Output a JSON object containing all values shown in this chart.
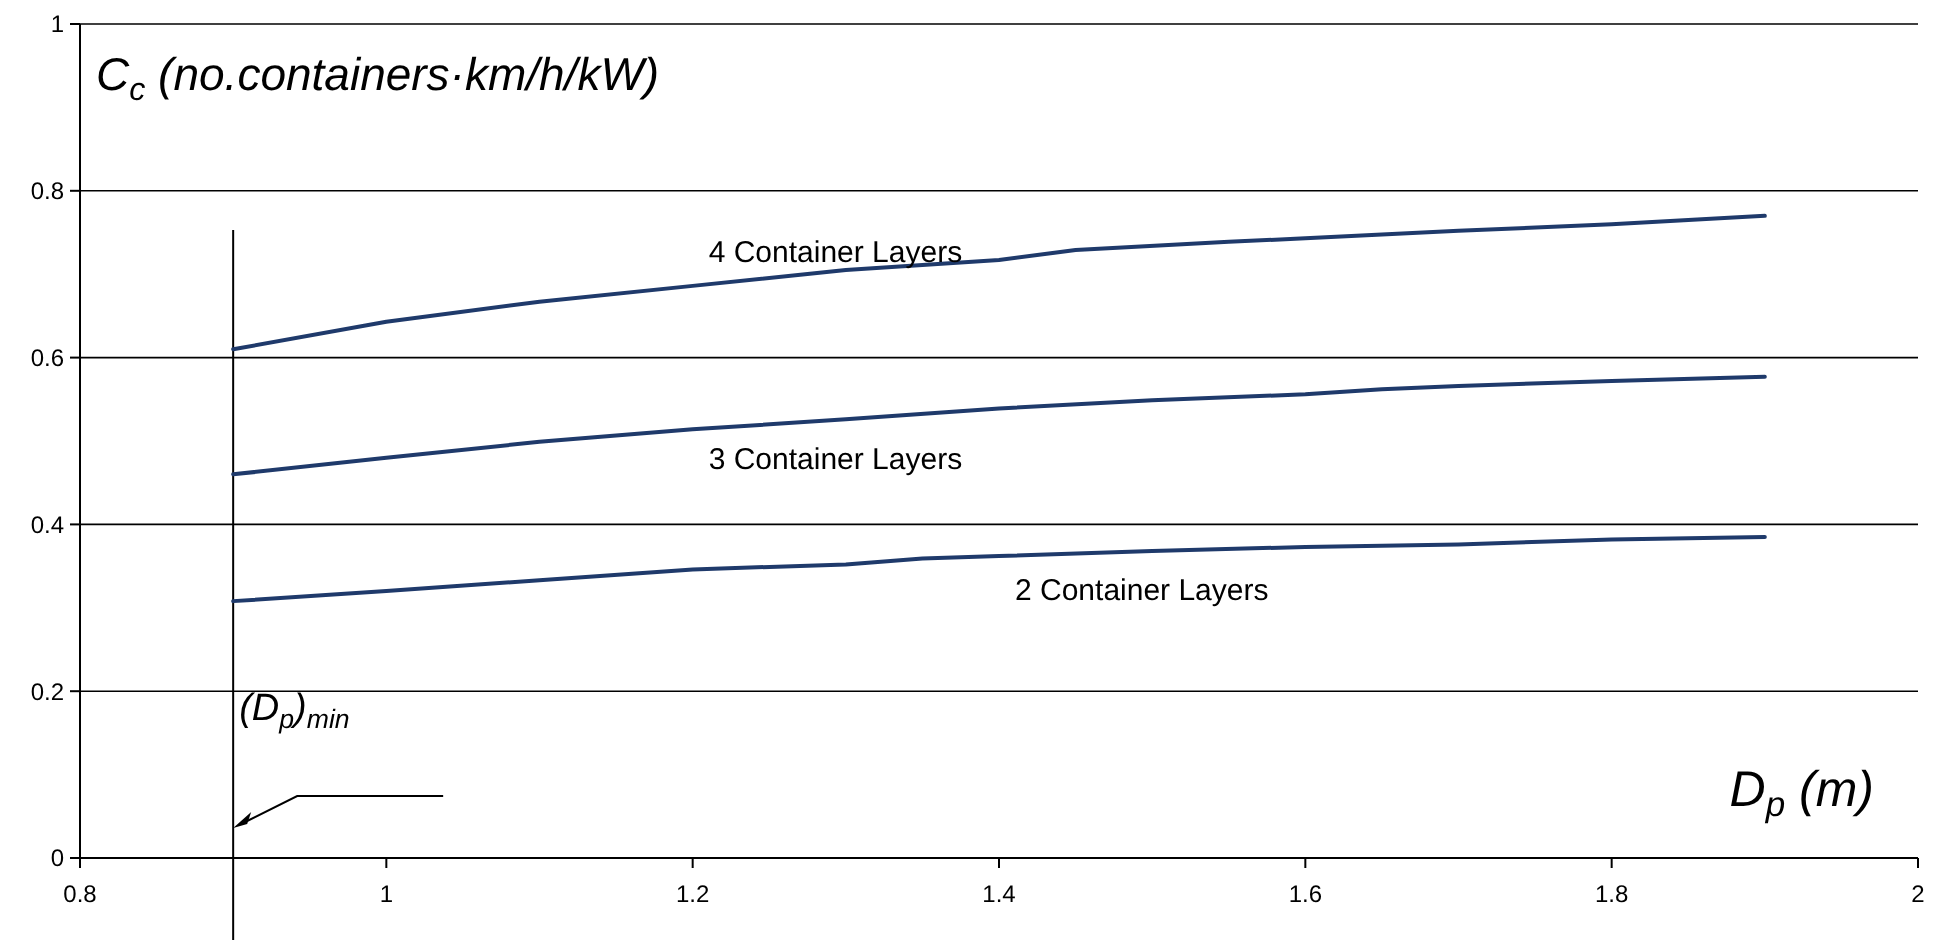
{
  "chart_data": {
    "type": "line",
    "xlabel": "D$_{p}$ (m)",
    "ylabel": "C$_{c}$ (no.containers·km/h/kW)",
    "xlim": [
      0.8,
      2
    ],
    "xticks": [
      0.8,
      1,
      1.2,
      1.4,
      1.6,
      1.8,
      2
    ],
    "ylim": [
      0,
      1
    ],
    "yticks": [
      0,
      0.2,
      0.4,
      0.6,
      0.8,
      1
    ],
    "grid": "y",
    "marker": "none",
    "line_style": "solid",
    "ref_lines": [
      {
        "axis": "x",
        "value": 0.9,
        "label": "(D$_{p}$)$_{min}$",
        "color": "#000000"
      }
    ],
    "series": [
      {
        "name": "4 Container Layers",
        "color": "#1f3a6b",
        "x": [
          0.9,
          1,
          1.1,
          1.2,
          1.3,
          1.4,
          1.45,
          1.55,
          1.6,
          1.7,
          1.8,
          1.9
        ],
        "values": [
          0.61,
          0.643,
          0.667,
          0.686,
          0.705,
          0.717,
          0.729,
          0.739,
          0.743,
          0.752,
          0.76,
          0.77
        ]
      },
      {
        "name": "3 Container Layers",
        "color": "#1f3a6b",
        "x": [
          0.9,
          1,
          1.1,
          1.2,
          1.3,
          1.4,
          1.5,
          1.6,
          1.65,
          1.7,
          1.8,
          1.9
        ],
        "values": [
          0.46,
          0.48,
          0.499,
          0.514,
          0.526,
          0.539,
          0.549,
          0.556,
          0.562,
          0.566,
          0.572,
          0.577
        ]
      },
      {
        "name": "2 Container Layers",
        "color": "#1f3a6b",
        "x": [
          0.9,
          1,
          1.1,
          1.2,
          1.3,
          1.35,
          1.4,
          1.5,
          1.6,
          1.7,
          1.8,
          1.9
        ],
        "values": [
          0.308,
          0.32,
          0.333,
          0.346,
          0.352,
          0.359,
          0.362,
          0.368,
          0.373,
          0.376,
          0.382,
          0.385
        ]
      }
    ]
  }
}
